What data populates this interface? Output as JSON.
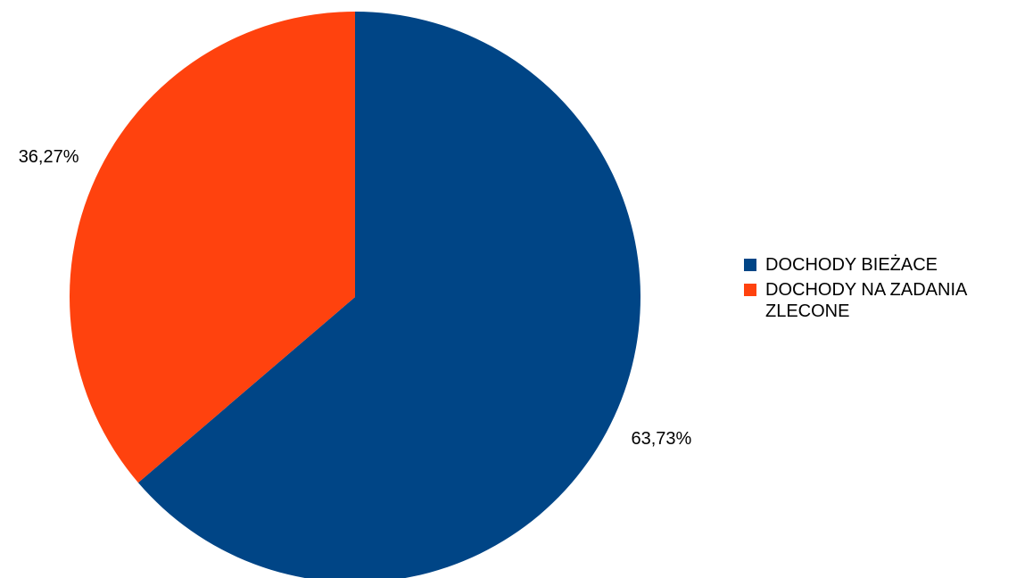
{
  "chart_data": {
    "type": "pie",
    "categories": [
      "DOCHODY BIEŻACE",
      "DOCHODY NA ZADANIA ZLECONE"
    ],
    "values": [
      63.73,
      36.27
    ],
    "data_labels": [
      "63,73%",
      "36,27%"
    ],
    "colors": [
      "#004586",
      "#ff420e"
    ],
    "title": "",
    "legend": {
      "position": "right",
      "entries": [
        "DOCHODY BIEŻACE",
        "DOCHODY NA ZADANIA ZLECONE"
      ]
    }
  }
}
